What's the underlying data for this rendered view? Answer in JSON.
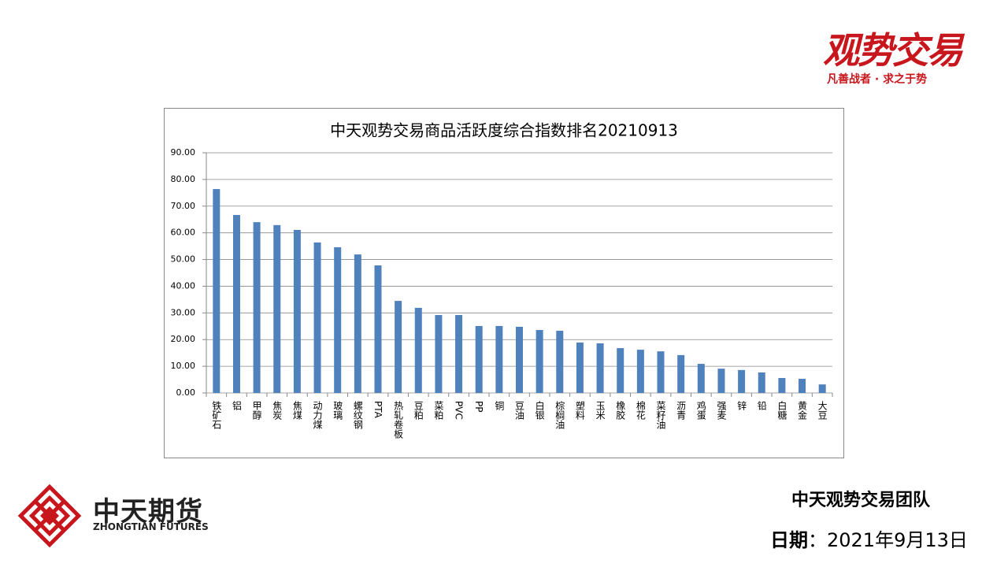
{
  "brand": {
    "title": "观势交易",
    "slogan": "凡善战者 · 求之于势"
  },
  "company": {
    "name": "中天期货",
    "name_en": "ZHONGTIAN FUTURES"
  },
  "footer": {
    "team": "中天观势交易团队",
    "date_label": "日期",
    "date_value": "：2021年9月13日"
  },
  "chart_data": {
    "type": "bar",
    "title": "中天观势交易商品活跃度综合指数排名20210913",
    "categories": [
      "铁矿石",
      "铝",
      "甲醇",
      "焦炭",
      "焦煤",
      "动力煤",
      "玻璃",
      "螺纹钢",
      "PTA",
      "热轧卷板",
      "豆粕",
      "菜粕",
      "PVC",
      "PP",
      "铜",
      "豆油",
      "白银",
      "棕榈油",
      "塑料",
      "玉米",
      "橡胶",
      "棉花",
      "菜籽油",
      "沥青",
      "鸡蛋",
      "强麦",
      "锌",
      "铅",
      "白糖",
      "黄金",
      "大豆"
    ],
    "values": [
      76.4,
      66.7,
      64.0,
      62.9,
      61.1,
      56.4,
      54.6,
      51.9,
      47.8,
      34.5,
      31.9,
      29.2,
      29.2,
      25.1,
      25.1,
      24.8,
      23.6,
      23.3,
      18.9,
      18.6,
      16.8,
      16.2,
      15.6,
      14.2,
      10.9,
      9.1,
      8.6,
      7.7,
      5.6,
      5.3,
      3.2
    ],
    "color": "#4f81bd",
    "ylim": [
      0,
      90
    ],
    "yticks": [
      {
        "value": 0,
        "label": "0.00"
      },
      {
        "value": 10,
        "label": "10.00"
      },
      {
        "value": 20,
        "label": "20.00"
      },
      {
        "value": 30,
        "label": "30.00"
      },
      {
        "value": 40,
        "label": "40.00"
      },
      {
        "value": 50,
        "label": "50.00"
      },
      {
        "value": 60,
        "label": "60.00"
      },
      {
        "value": 70,
        "label": "70.00"
      },
      {
        "value": 80,
        "label": "80.00"
      },
      {
        "value": 90,
        "label": "90.00"
      }
    ],
    "grid": true
  }
}
